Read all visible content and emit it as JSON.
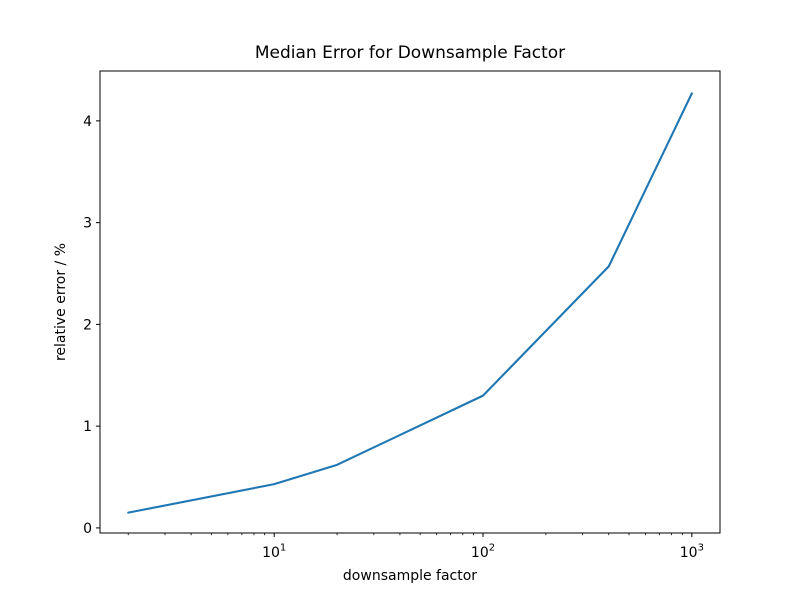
{
  "figure": {
    "background": "#ffffff"
  },
  "chart_data": {
    "type": "line",
    "title": "Median Error for Downsample Factor",
    "xlabel": "downsample factor",
    "ylabel": "relative error / %",
    "xscale": "log",
    "yscale": "linear",
    "x": [
      2,
      10,
      20,
      100,
      400,
      1000
    ],
    "y": [
      0.15,
      0.43,
      0.62,
      1.3,
      2.57,
      4.27
    ],
    "xlim": [
      1.465,
      1364
    ],
    "ylim": [
      -0.05,
      4.49
    ],
    "grid": false,
    "legend": null,
    "line_color": "#1f77b4",
    "axis_color": "#000000",
    "line_width": 2.1,
    "x_major_ticks": [
      {
        "value": 10,
        "base": "10",
        "sup": "1"
      },
      {
        "value": 100,
        "base": "10",
        "sup": "2"
      },
      {
        "value": 1000,
        "base": "10",
        "sup": "3"
      }
    ],
    "x_minor_ticks": [
      2,
      3,
      4,
      5,
      6,
      7,
      8,
      9,
      20,
      30,
      40,
      50,
      60,
      70,
      80,
      90,
      200,
      300,
      400,
      500,
      600,
      700,
      800,
      900
    ],
    "y_ticks": [
      {
        "value": 0,
        "label": "0"
      },
      {
        "value": 1,
        "label": "1"
      },
      {
        "value": 2,
        "label": "2"
      },
      {
        "value": 3,
        "label": "3"
      },
      {
        "value": 4,
        "label": "4"
      }
    ]
  }
}
